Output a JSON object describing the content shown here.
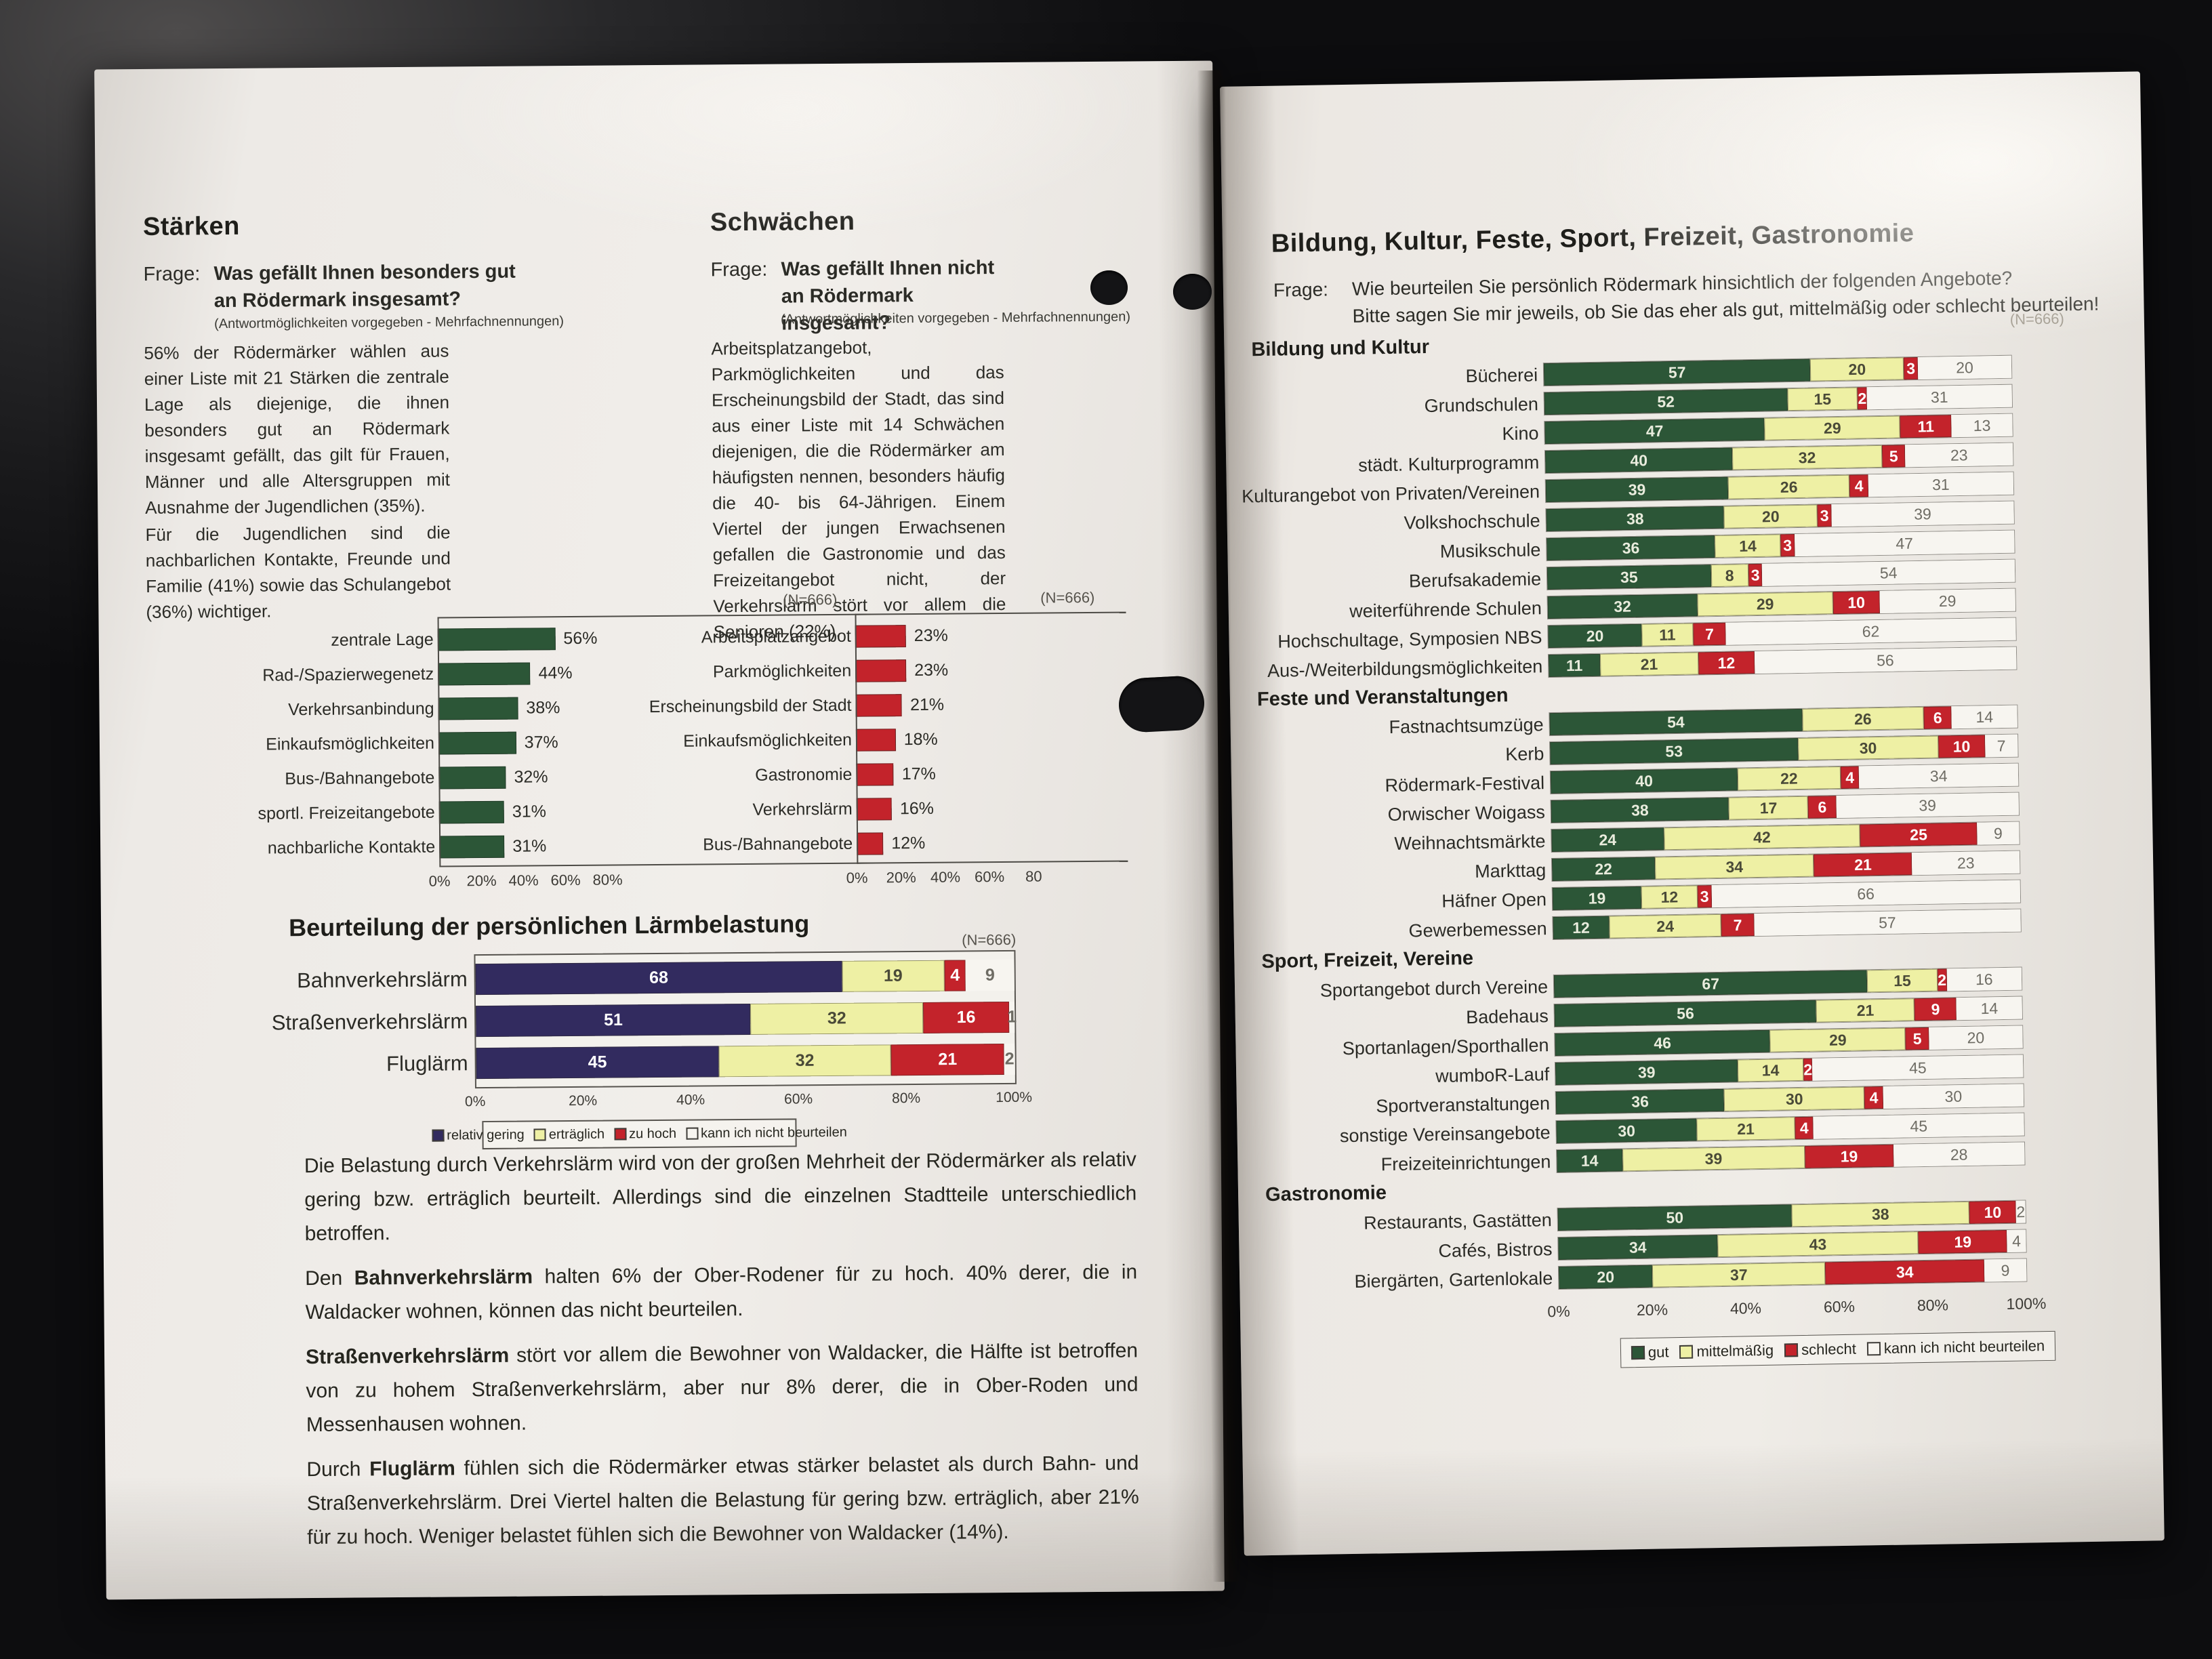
{
  "colors": {
    "green": "#2c5637",
    "yellow": "#eef0a4",
    "red": "#c3232b",
    "navy": "#322b5f",
    "white_seg": "#f7f5f0"
  },
  "left": {
    "staerken": {
      "title": "Stärken",
      "frage_label": "Frage:",
      "frage": [
        {
          "t": "Was gefällt Ihnen "
        },
        {
          "t": "besonders gut",
          "b": 1
        },
        {
          "t": " an Rödermark insgesamt?"
        }
      ],
      "note": "(Antwortmöglichkeiten vorgegeben - Mehrfachnennungen)",
      "p1": "56% der Rödermärker wählen aus einer Liste mit 21 Stärken die zentrale Lage als diejenige, die ihnen besonders gut an Rödermark insgesamt gefällt, das gilt für Frauen, Männer und alle Altersgruppen mit Ausnahme der Jugendlichen (35%).",
      "p2": "Für die Jugendlichen sind die nachbarlichen Kontakte, Freunde und Familie (41%) sowie das Schulangebot (36%) wichtiger.",
      "n": "(N=666)"
    },
    "schwaechen": {
      "title": "Schwächen",
      "frage_label": "Frage:",
      "frage": [
        {
          "t": "Was gefällt Ihnen "
        },
        {
          "t": "nicht",
          "b": 1
        },
        {
          "t": " an Rödermark insgesamt?"
        }
      ],
      "note": "(Antwortmöglichkeiten vorgegeben - Mehrfachnennungen)",
      "p1": "Arbeitsplatzangebot, Parkmöglichkeiten und das Erscheinungsbild der Stadt, das sind aus einer Liste mit 14 Schwächen diejenigen, die die Rödermärker am häufigsten nennen, besonders häufig die 40- bis 64-Jährigen. Einem Viertel der jungen Erwachsenen gefallen die Gastronomie und das Freizeitangebot nicht, der Verkehrslärm stört vor allem die Senioren (22%).",
      "n": "(N=666)"
    },
    "laerm": {
      "title": "Beurteilung der persönlichen Lärmbelastung",
      "n": "(N=666)"
    },
    "paragraphs": [
      [
        {
          "t": "Die Belastung durch Verkehrslärm wird von der großen Mehrheit der Rödermärker als relativ gering bzw. erträglich beurteilt. Allerdings sind die einzelnen Stadtteile unterschiedlich betroffen."
        }
      ],
      [
        {
          "t": "Den "
        },
        {
          "t": "Bahnverkehrslärm",
          "b": 1
        },
        {
          "t": " halten 6% der Ober-Rodener für zu hoch. 40% derer, die in Waldacker wohnen, können das nicht beurteilen."
        }
      ],
      [
        {
          "t": "Straßenverkehrslärm",
          "b": 1
        },
        {
          "t": " stört vor allem die Bewohner von Waldacker, die Hälfte ist betroffen von zu hohem Straßenverkehrslärm, aber nur 8% derer, die in Ober-Roden und Messenhausen wohnen."
        }
      ],
      [
        {
          "t": "Durch "
        },
        {
          "t": "Fluglärm",
          "b": 1
        },
        {
          "t": " fühlen sich die Rödermärker etwas stärker belastet als durch Bahn- und Straßenverkehrslärm. Drei Viertel halten die Belastung für gering bzw. erträglich, aber 21% für zu hoch. Weniger belastet fühlen sich die Bewohner von Waldacker (14%)."
        }
      ]
    ]
  },
  "right": {
    "title": "Bildung, Kultur, Feste, Sport, Freizeit, Gastronomie",
    "frage_label": "Frage:",
    "frage1": "Wie beurteilen Sie persönlich Rödermark hinsichtlich der folgenden Angebote?",
    "frage2": "Bitte sagen Sie mir jeweils, ob Sie das eher als gut, mittelmäßig oder schlecht beurteilen!",
    "n": "(N=666)"
  },
  "chart_data": [
    {
      "id": "staerken",
      "type": "bar",
      "title": "Stärken",
      "n": "(N=666)",
      "color": "#2c5637",
      "categories": [
        "zentrale Lage",
        "Rad-/Spazierwegenetz",
        "Verkehrsanbindung",
        "Einkaufsmöglichkeiten",
        "Bus-/Bahnangebote",
        "sportl. Freizeitangebote",
        "nachbarliche Kontakte"
      ],
      "values": [
        56,
        44,
        38,
        37,
        32,
        31,
        31
      ],
      "ticks": [
        "0%",
        "20%",
        "40%",
        "60%",
        "80%"
      ],
      "xlim": [
        0,
        100
      ]
    },
    {
      "id": "schwaechen",
      "type": "bar",
      "title": "Schwächen",
      "n": "(N=666)",
      "color": "#c3232b",
      "categories": [
        "Arbeitsplatzangebot",
        "Parkmöglichkeiten",
        "Erscheinungsbild der Stadt",
        "Einkaufsmöglichkeiten",
        "Gastronomie",
        "Verkehrslärm",
        "Bus-/Bahnangebote"
      ],
      "values": [
        23,
        23,
        21,
        18,
        17,
        16,
        12
      ],
      "ticks": [
        "0%",
        "20%",
        "40%",
        "60%",
        "80"
      ],
      "xlim": [
        0,
        100
      ]
    },
    {
      "id": "laerm",
      "type": "stacked_bar",
      "title": "Beurteilung der persönlichen Lärmbelastung",
      "n": "(N=666)",
      "categories": [
        "Bahnverkehrslärm",
        "Straßenverkehrslärm",
        "Fluglärm"
      ],
      "series": [
        {
          "name": "relativ gering",
          "color": "#322b5f",
          "values": [
            68,
            51,
            45
          ]
        },
        {
          "name": "erträglich",
          "color": "#eef0a4",
          "values": [
            19,
            32,
            32
          ]
        },
        {
          "name": "zu hoch",
          "color": "#c3232b",
          "values": [
            4,
            16,
            21
          ]
        },
        {
          "name": "kann ich nicht beurteilen",
          "color": "#f7f5f0",
          "values": [
            9,
            1,
            2
          ]
        }
      ],
      "ticks": [
        "0%",
        "20%",
        "40%",
        "60%",
        "80%",
        "100%"
      ],
      "xlim": [
        0,
        100
      ],
      "legend_position": "bottom"
    },
    {
      "id": "angebote",
      "type": "stacked_bar",
      "title": "Bildung, Kultur, Feste, Sport, Freizeit, Gastronomie",
      "n": "(N=666)",
      "series_names": [
        "gut",
        "mittelmäßig",
        "schlecht",
        "kann ich nicht beurteilen"
      ],
      "series_colors": [
        "#2c5637",
        "#eef0a4",
        "#c3232b",
        "#f7f5f0"
      ],
      "ticks": [
        "0%",
        "20%",
        "40%",
        "60%",
        "80%",
        "100%"
      ],
      "xlim": [
        0,
        100
      ],
      "legend_position": "bottom",
      "sections": [
        {
          "title": "Bildung und Kultur",
          "rows": [
            {
              "label": "Bücherei",
              "values": [
                57,
                20,
                3,
                20
              ]
            },
            {
              "label": "Grundschulen",
              "values": [
                52,
                15,
                2,
                31
              ]
            },
            {
              "label": "Kino",
              "values": [
                47,
                29,
                11,
                13
              ]
            },
            {
              "label": "städt. Kulturprogramm",
              "values": [
                40,
                32,
                5,
                23
              ]
            },
            {
              "label": "Kulturangebot von Privaten/Vereinen",
              "values": [
                39,
                26,
                4,
                31
              ]
            },
            {
              "label": "Volkshochschule",
              "values": [
                38,
                20,
                3,
                39
              ]
            },
            {
              "label": "Musikschule",
              "values": [
                36,
                14,
                3,
                47
              ]
            },
            {
              "label": "Berufsakademie",
              "values": [
                35,
                8,
                3,
                54
              ]
            },
            {
              "label": "weiterführende Schulen",
              "values": [
                32,
                29,
                10,
                29
              ]
            },
            {
              "label": "Hochschultage, Symposien NBS",
              "values": [
                20,
                11,
                7,
                62
              ]
            },
            {
              "label": "Aus-/Weiterbildungsmöglichkeiten",
              "values": [
                11,
                21,
                12,
                56
              ]
            }
          ]
        },
        {
          "title": "Feste und Veranstaltungen",
          "rows": [
            {
              "label": "Fastnachtsumzüge",
              "values": [
                54,
                26,
                6,
                14
              ]
            },
            {
              "label": "Kerb",
              "values": [
                53,
                30,
                10,
                7
              ]
            },
            {
              "label": "Rödermark-Festival",
              "values": [
                40,
                22,
                4,
                34
              ]
            },
            {
              "label": "Orwischer Woigass",
              "values": [
                38,
                17,
                6,
                39
              ]
            },
            {
              "label": "Weihnachtsmärkte",
              "values": [
                24,
                42,
                25,
                9
              ]
            },
            {
              "label": "Markttag",
              "values": [
                22,
                34,
                21,
                23
              ]
            },
            {
              "label": "Häfner Open",
              "values": [
                19,
                12,
                3,
                66
              ]
            },
            {
              "label": "Gewerbemessen",
              "values": [
                12,
                24,
                7,
                57
              ]
            }
          ]
        },
        {
          "title": "Sport, Freizeit, Vereine",
          "rows": [
            {
              "label": "Sportangebot durch Vereine",
              "values": [
                67,
                15,
                2,
                16
              ]
            },
            {
              "label": "Badehaus",
              "values": [
                56,
                21,
                9,
                14
              ]
            },
            {
              "label": "Sportanlagen/Sporthallen",
              "values": [
                46,
                29,
                5,
                20
              ]
            },
            {
              "label": "wumboR-Lauf",
              "values": [
                39,
                14,
                2,
                45
              ]
            },
            {
              "label": "Sportveranstaltungen",
              "values": [
                36,
                30,
                4,
                30
              ]
            },
            {
              "label": "sonstige Vereinsangebote",
              "values": [
                30,
                21,
                4,
                45
              ]
            },
            {
              "label": "Freizeiteinrichtungen",
              "values": [
                14,
                39,
                19,
                28
              ]
            }
          ]
        },
        {
          "title": "Gastronomie",
          "rows": [
            {
              "label": "Restaurants, Gastätten",
              "values": [
                50,
                38,
                10,
                2
              ]
            },
            {
              "label": "Cafés, Bistros",
              "values": [
                34,
                43,
                19,
                4
              ]
            },
            {
              "label": "Biergärten, Gartenlokale",
              "values": [
                20,
                37,
                34,
                9
              ]
            }
          ]
        }
      ]
    }
  ]
}
